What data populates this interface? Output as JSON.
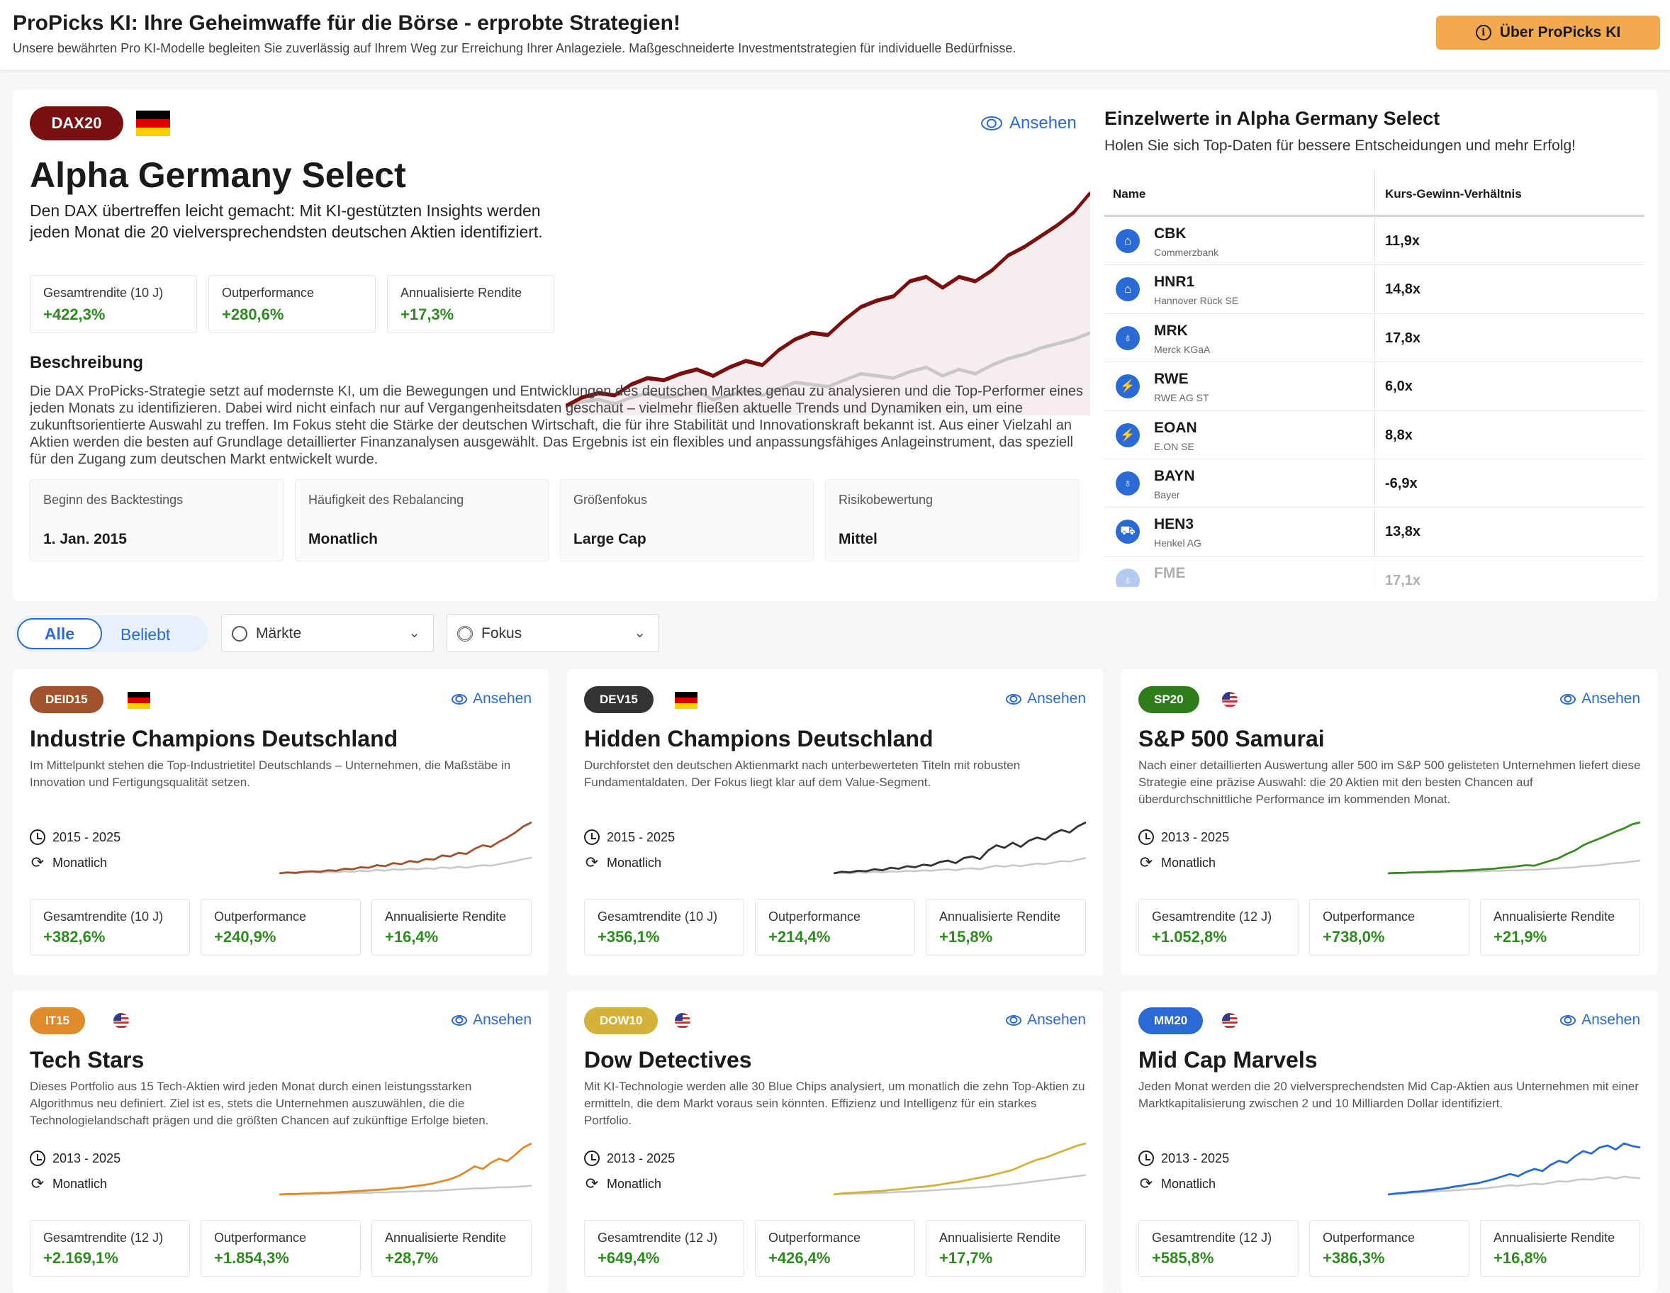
{
  "header": {
    "title": "ProPicks KI: Ihre Geheimwaffe für die Börse - erprobte Strategien!",
    "subtitle": "Unsere bewährten Pro KI-Modelle begleiten Sie zuverlässig auf Ihrem Weg zur Erreichung Ihrer Anlageziele. Maßgeschneiderte Investmentstrategien für individuelle Bedürfnisse.",
    "about_button": "Über ProPicks KI"
  },
  "featured": {
    "badge": "DAX20",
    "badge_color": "#7a0f0f",
    "view_label": "Ansehen",
    "title": "Alpha Germany Select",
    "description": "Den DAX übertreffen leicht gemacht: Mit KI-gestützten Insights werden jeden Monat die 20 vielversprechendsten deutschen Aktien identifiziert.",
    "stats": [
      {
        "label": "Gesamtrendite (10 J)",
        "value": "+422,3%"
      },
      {
        "label": "Outperformance",
        "value": "+280,6%"
      },
      {
        "label": "Annualisierte Rendite",
        "value": "+17,3%"
      }
    ],
    "section_title": "Beschreibung",
    "long_description": "Die DAX ProPicks-Strategie setzt auf modernste KI, um die Bewegungen und Entwicklungen des deutschen Marktes genau zu analysieren und die Top-Performer eines jeden Monats zu identifizieren. Dabei wird nicht einfach nur auf Vergangenheitsdaten geschaut – vielmehr fließen aktuelle Trends und Dynamiken ein, um eine zukunftsorientierte Auswahl zu treffen. Im Fokus steht die Stärke der deutschen Wirtschaft, die für ihre Stabilität und Innovationskraft bekannt ist. Aus einer Vielzahl an Aktien werden die besten auf Grundlage detaillierter Finanzanalysen ausgewählt. Das Ergebnis ist ein flexibles und anpassungsfähiges Anlageinstrument, das speziell für den Zugang zum deutschen Markt entwickelt wurde.",
    "info": [
      {
        "label": "Beginn des Backtestings",
        "value": "1. Jan. 2015"
      },
      {
        "label": "Häufigkeit des Rebalancing",
        "value": "Monatlich"
      },
      {
        "label": "Größenfokus",
        "value": "Large Cap"
      },
      {
        "label": "Risikobewertung",
        "value": "Mittel"
      }
    ],
    "chart_data": {
      "type": "line",
      "series": [
        {
          "color": "#7a0f0f",
          "values": [
            0,
            4,
            6,
            5,
            10,
            13,
            12,
            15,
            17,
            14,
            18,
            21,
            19,
            26,
            31,
            34,
            33,
            40,
            46,
            49,
            51,
            58,
            60,
            55,
            60,
            58,
            63,
            70,
            74,
            79,
            84,
            90,
            99
          ]
        },
        {
          "color": "#c8c8c8",
          "values": [
            0,
            2,
            3,
            1,
            4,
            6,
            4,
            5,
            7,
            3,
            5,
            7,
            5,
            8,
            11,
            10,
            9,
            12,
            15,
            14,
            13,
            16,
            18,
            14,
            17,
            15,
            19,
            22,
            24,
            27,
            29,
            31,
            34
          ]
        }
      ]
    }
  },
  "holdings": {
    "title": "Einzelwerte in Alpha Germany Select",
    "subtitle": "Holen Sie sich Top-Daten für bessere Entscheidungen und mehr Erfolg!",
    "columns": [
      "Name",
      "Kurs-Gewinn-Verhältnis"
    ],
    "rows": [
      {
        "ticker": "CBK",
        "name": "Commerzbank",
        "pe": "11,9x",
        "icon": "bank-icon"
      },
      {
        "ticker": "HNR1",
        "name": "Hannover Rück SE",
        "pe": "14,8x",
        "icon": "bank-icon"
      },
      {
        "ticker": "MRK",
        "name": "Merck KGaA",
        "pe": "17,8x",
        "icon": "stethoscope-icon"
      },
      {
        "ticker": "RWE",
        "name": "RWE AG ST",
        "pe": "6,0x",
        "icon": "utility-icon"
      },
      {
        "ticker": "EOAN",
        "name": "E.ON SE",
        "pe": "8,8x",
        "icon": "utility-icon"
      },
      {
        "ticker": "BAYN",
        "name": "Bayer",
        "pe": "-6,9x",
        "icon": "stethoscope-icon"
      },
      {
        "ticker": "HEN3",
        "name": "Henkel AG",
        "pe": "13,8x",
        "icon": "cart-icon"
      },
      {
        "ticker": "FME",
        "name": "",
        "pe": "17,1x",
        "icon": "stethoscope-icon"
      }
    ]
  },
  "filters": {
    "tabs": [
      "Alle",
      "Beliebt"
    ],
    "markets_label": "Märkte",
    "focus_label": "Fokus"
  },
  "cards": [
    {
      "badge": "DEID15",
      "badge_color": "#a0522d",
      "flag": "de",
      "title": "Industrie Champions Deutschland",
      "description": "Im Mittelpunkt stehen die Top-Industrietitel Deutschlands – Unternehmen, die Maßstäbe in Innovation und Fertigungsqualität setzen.",
      "period": "2015 - 2025",
      "frequency": "Monatlich",
      "view": "Ansehen",
      "stats": [
        {
          "label": "Gesamtrendite (10 J)",
          "value": "+382,6%"
        },
        {
          "label": "Outperformance",
          "value": "+240,9%"
        },
        {
          "label": "Annualisierte Rendite",
          "value": "+16,4%"
        }
      ],
      "line_color": "#a0522d",
      "series": [
        0,
        2,
        1,
        3,
        4,
        3,
        6,
        5,
        9,
        8,
        12,
        11,
        16,
        14,
        20,
        18,
        24,
        22,
        28,
        27,
        35,
        33,
        40,
        38,
        48,
        55,
        52,
        62,
        70,
        80,
        92,
        100
      ],
      "bench": [
        0,
        1,
        0,
        2,
        3,
        1,
        3,
        2,
        4,
        3,
        5,
        4,
        7,
        5,
        8,
        7,
        9,
        8,
        10,
        9,
        12,
        10,
        13,
        11,
        14,
        16,
        15,
        18,
        21,
        24,
        28,
        31
      ]
    },
    {
      "badge": "DEV15",
      "badge_color": "#333333",
      "flag": "de",
      "title": "Hidden Champions Deutschland",
      "description": "Durchforstet den deutschen Aktienmarkt nach unterbewerteten Titeln mit robusten Fundamentaldaten. Der Fokus liegt klar auf dem Value-Segment.",
      "period": "2015 - 2025",
      "frequency": "Monatlich",
      "view": "Ansehen",
      "stats": [
        {
          "label": "Gesamtrendite (10 J)",
          "value": "+356,1%"
        },
        {
          "label": "Outperformance",
          "value": "+214,4%"
        },
        {
          "label": "Annualisierte Rendite",
          "value": "+15,8%"
        }
      ],
      "line_color": "#333333",
      "series": [
        0,
        3,
        2,
        5,
        4,
        8,
        6,
        11,
        9,
        14,
        12,
        17,
        15,
        22,
        25,
        20,
        30,
        33,
        28,
        45,
        55,
        50,
        60,
        52,
        64,
        70,
        66,
        78,
        85,
        80,
        92,
        100
      ],
      "bench": [
        0,
        1,
        0,
        2,
        1,
        3,
        2,
        4,
        3,
        5,
        4,
        6,
        5,
        7,
        8,
        6,
        9,
        10,
        8,
        12,
        15,
        13,
        16,
        14,
        17,
        19,
        18,
        21,
        24,
        23,
        27,
        30
      ]
    },
    {
      "badge": "SP20",
      "badge_color": "#2e7d1a",
      "flag": "us",
      "title": "S&P 500 Samurai",
      "description": "Nach einer detaillierten Auswertung aller 500 im S&P 500 gelisteten Unternehmen liefert diese Strategie eine präzise Auswahl: die 20 Aktien mit den besten Chancen auf überdurchschnittliche Performance im kommenden Monat.",
      "period": "2013 - 2025",
      "frequency": "Monatlich",
      "view": "Ansehen",
      "stats": [
        {
          "label": "Gesamtrendite (12 J)",
          "value": "+1.052,8%"
        },
        {
          "label": "Outperformance",
          "value": "+738,0%"
        },
        {
          "label": "Annualisierte Rendite",
          "value": "+21,9%"
        }
      ],
      "line_color": "#3a8a22",
      "series": [
        0,
        1,
        1,
        2,
        2,
        3,
        3,
        4,
        5,
        5,
        6,
        7,
        8,
        9,
        11,
        12,
        14,
        16,
        15,
        20,
        25,
        30,
        38,
        45,
        55,
        62,
        68,
        75,
        82,
        88,
        96,
        100
      ],
      "bench": [
        0,
        0,
        1,
        1,
        1,
        2,
        2,
        2,
        3,
        3,
        3,
        4,
        4,
        5,
        5,
        6,
        6,
        7,
        7,
        8,
        9,
        10,
        11,
        12,
        14,
        15,
        16,
        18,
        20,
        21,
        23,
        25
      ]
    },
    {
      "badge": "IT15",
      "badge_color": "#e08a2c",
      "flag": "us",
      "title": "Tech Stars",
      "description": "Dieses Portfolio aus 15 Tech-Aktien wird jeden Monat durch einen leistungsstarken Algorithmus neu definiert. Ziel ist es, stets die Unternehmen auszuwählen, die die Technologielandschaft prägen und die größten Chancen auf zukünftige Erfolge bieten.",
      "period": "2013 - 2025",
      "frequency": "Monatlich",
      "view": "Ansehen",
      "stats": [
        {
          "label": "Gesamtrendite (12 J)",
          "value": "+2.169,1%"
        },
        {
          "label": "Outperformance",
          "value": "+1.854,3%"
        },
        {
          "label": "Annualisierte Rendite",
          "value": "+28,7%"
        }
      ],
      "line_color": "#e08a2c",
      "series": [
        0,
        1,
        1,
        2,
        2,
        3,
        3,
        4,
        5,
        6,
        7,
        8,
        9,
        10,
        12,
        13,
        15,
        17,
        19,
        22,
        26,
        30,
        36,
        45,
        55,
        50,
        62,
        70,
        65,
        78,
        92,
        100
      ],
      "bench": [
        0,
        0,
        0,
        1,
        1,
        1,
        2,
        2,
        2,
        3,
        3,
        3,
        4,
        4,
        5,
        5,
        6,
        6,
        7,
        7,
        8,
        9,
        10,
        11,
        12,
        12,
        13,
        14,
        14,
        15,
        16,
        17
      ]
    },
    {
      "badge": "DOW10",
      "badge_color": "#d4b23a",
      "flag": "us",
      "title": "Dow Detectives",
      "description": "Mit KI-Technologie werden alle 30 Blue Chips analysiert, um monatlich die zehn Top-Aktien zu ermitteln, die dem Markt voraus sein könnten. Effizienz und Intelligenz für ein starkes Portfolio.",
      "period": "2013 - 2025",
      "frequency": "Monatlich",
      "view": "Ansehen",
      "stats": [
        {
          "label": "Gesamtrendite (12 J)",
          "value": "+649,4%"
        },
        {
          "label": "Outperformance",
          "value": "+426,4%"
        },
        {
          "label": "Annualisierte Rendite",
          "value": "+17,7%"
        }
      ],
      "line_color": "#d4b23a",
      "series": [
        0,
        2,
        3,
        4,
        5,
        6,
        7,
        9,
        10,
        12,
        14,
        15,
        17,
        19,
        22,
        24,
        27,
        30,
        33,
        36,
        40,
        44,
        48,
        55,
        62,
        68,
        72,
        78,
        84,
        90,
        96,
        100
      ],
      "bench": [
        0,
        1,
        1,
        2,
        2,
        3,
        3,
        4,
        5,
        5,
        6,
        7,
        8,
        9,
        10,
        11,
        12,
        13,
        14,
        15,
        17,
        18,
        20,
        22,
        24,
        26,
        28,
        30,
        32,
        34,
        36,
        38
      ]
    },
    {
      "badge": "MM20",
      "badge_color": "#2a6ad6",
      "flag": "us",
      "title": "Mid Cap Marvels",
      "description": "Jeden Monat werden die 20 vielversprechendsten Mid Cap-Aktien aus Unternehmen mit einer Marktkapitalisierung zwischen 2 und 10 Milliarden Dollar identifiziert.",
      "period": "2013 - 2025",
      "frequency": "Monatlich",
      "view": "Ansehen",
      "stats": [
        {
          "label": "Gesamtrendite (12 J)",
          "value": "+585,8%"
        },
        {
          "label": "Outperformance",
          "value": "+386,3%"
        },
        {
          "label": "Annualisierte Rendite",
          "value": "+16,8%"
        }
      ],
      "line_color": "#2a6ad6",
      "series": [
        0,
        2,
        3,
        5,
        6,
        8,
        10,
        12,
        15,
        17,
        20,
        22,
        26,
        30,
        35,
        40,
        36,
        44,
        50,
        46,
        58,
        66,
        62,
        75,
        85,
        80,
        92,
        96,
        88,
        100,
        95,
        92
      ],
      "bench": [
        0,
        1,
        2,
        3,
        4,
        5,
        6,
        7,
        8,
        9,
        10,
        11,
        12,
        14,
        16,
        18,
        17,
        19,
        21,
        20,
        23,
        26,
        25,
        28,
        30,
        29,
        32,
        34,
        31,
        35,
        33,
        32
      ]
    }
  ]
}
